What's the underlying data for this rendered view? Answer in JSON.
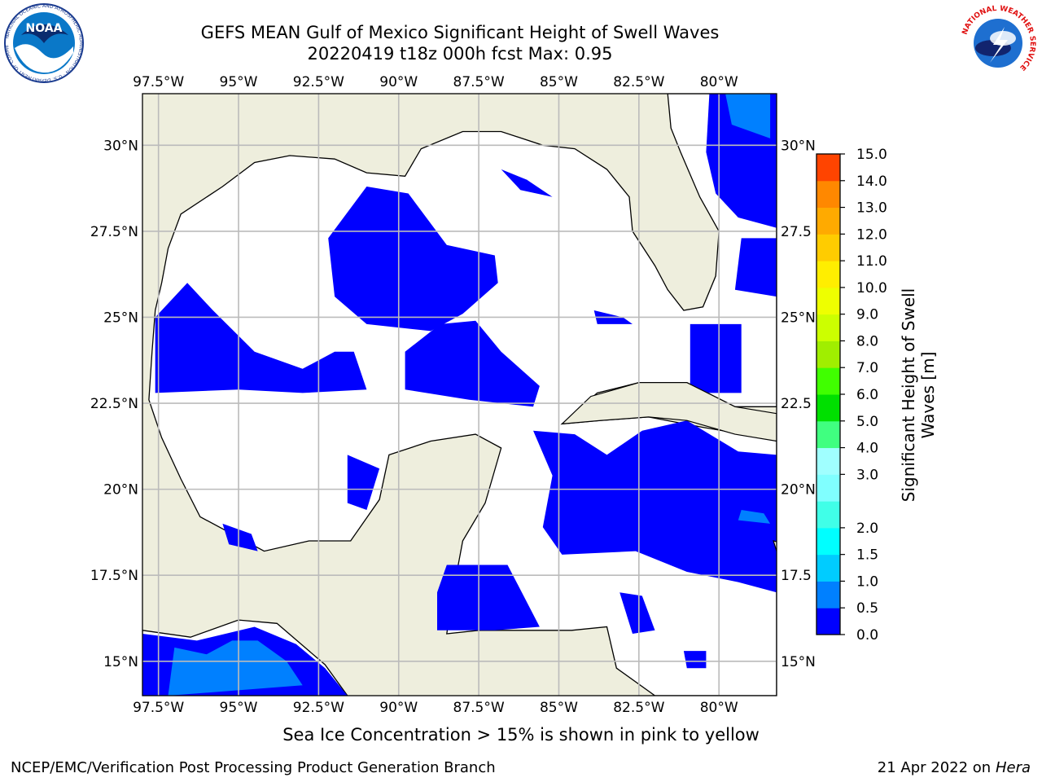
{
  "header": {
    "title_line1": "GEFS MEAN Gulf of Mexico Significant Height of Swell Waves",
    "title_line2": "20220419 t18z 000h fcst   Max: 0.95"
  },
  "logos": {
    "noaa_text": "NOAA",
    "noaa_ring_text": "NATIONAL OCEANIC AND ATMOSPHERIC ADMINISTRATION · U.S. DEPARTMENT OF COMMERCE",
    "nws_ring_text": "NATIONAL WEATHER SERVICE"
  },
  "map": {
    "lon_range": [
      -98.0,
      -78.2
    ],
    "lat_range": [
      14.0,
      31.5
    ],
    "lon_ticks": [
      "97.5°W",
      "95°W",
      "92.5°W",
      "90°W",
      "87.5°W",
      "85°W",
      "82.5°W",
      "80°W"
    ],
    "lon_tick_values": [
      -97.5,
      -95,
      -92.5,
      -90,
      -87.5,
      -85,
      -82.5,
      -80
    ],
    "lat_ticks": [
      "30°N",
      "27.5°N",
      "25°N",
      "22.5°N",
      "20°N",
      "17.5°N",
      "15°N"
    ],
    "lat_tick_values": [
      30,
      27.5,
      25,
      22.5,
      20,
      17.5,
      15
    ],
    "right_lat_ticks": [
      "30°N",
      "27.5",
      "25°N",
      "22.5",
      "20°N",
      "17.5",
      "15°N"
    ],
    "colors": {
      "land": "#eeeedd",
      "ocean": "#ffffff",
      "swell_low": "#0000ff",
      "swell_mid": "#0080ff",
      "grid": "#bbbbbb"
    }
  },
  "colorbar": {
    "title_line1": "Significant Height of Swell",
    "title_line2": "Waves [m]",
    "levels": [
      "0.0",
      "0.5",
      "1.0",
      "1.5",
      "2.0",
      "2.5",
      "3.0",
      "4.0",
      "5.0",
      "6.0",
      "7.0",
      "8.0",
      "9.0",
      "10.0",
      "11.0",
      "12.0",
      "13.0",
      "14.0",
      "15.0"
    ],
    "tick_labels": [
      "0.0",
      "0.5",
      "1.0",
      "1.5",
      "2.0",
      "3.0",
      "4.0",
      "5.0",
      "6.0",
      "7.0",
      "8.0",
      "9.0",
      "10.0",
      "11.0",
      "12.0",
      "13.0",
      "14.0",
      "15.0"
    ],
    "colors": [
      "#0000ff",
      "#0080ff",
      "#00ccff",
      "#00ffff",
      "#40ffe8",
      "#80ffff",
      "#a0ffff",
      "#40ff80",
      "#00e000",
      "#40ff00",
      "#a0ee00",
      "#ccff00",
      "#eeff00",
      "#ffee00",
      "#ffcc00",
      "#ffaa00",
      "#ff8800",
      "#ff4400",
      "#ff1100",
      "#ff0000"
    ]
  },
  "footer": {
    "caption": "Sea Ice Concentration > 15% is shown in pink to yellow",
    "credit": "NCEP/EMC/Verification Post Processing Product Generation Branch",
    "date": "21 Apr 2022 on ",
    "host": "Hera"
  }
}
